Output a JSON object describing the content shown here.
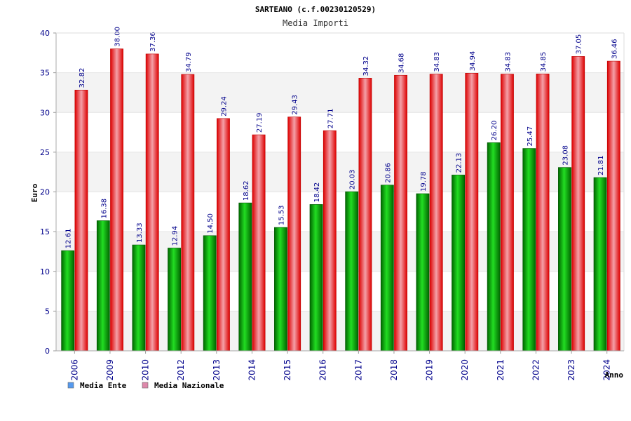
{
  "chart_data": {
    "type": "bar",
    "title": "SARTEANO (c.f.00230120529)",
    "subtitle": "Media Importi",
    "xlabel": "Anno",
    "ylabel": "Euro",
    "ylim": [
      0,
      40
    ],
    "yticks": [
      0,
      5,
      10,
      15,
      20,
      25,
      30,
      35,
      40
    ],
    "grid": true,
    "legend_position": "bottom-left",
    "categories": [
      "2006",
      "2009",
      "2010",
      "2012",
      "2013",
      "2014",
      "2015",
      "2016",
      "2017",
      "2018",
      "2019",
      "2020",
      "2021",
      "2022",
      "2023",
      "2024"
    ],
    "series": [
      {
        "name": "Media Ente",
        "color": "#00aa00",
        "legend_color": "#5599ee",
        "values": [
          12.61,
          16.38,
          13.33,
          12.94,
          14.5,
          18.62,
          15.53,
          18.42,
          20.03,
          20.86,
          19.78,
          22.13,
          26.2,
          25.47,
          23.08,
          21.81
        ],
        "labels": [
          "12.61",
          "16.38",
          "13.33",
          "12.94",
          "14.50",
          "18.62",
          "15.53",
          "18.42",
          "20.03",
          "20.86",
          "19.78",
          "22.13",
          "26.20",
          "25.47",
          "23.08",
          "21.81"
        ]
      },
      {
        "name": "Media Nazionale",
        "color": "#ee1122",
        "legend_color": "#dd88aa",
        "values": [
          32.82,
          38.0,
          37.36,
          34.79,
          29.24,
          27.19,
          29.43,
          27.71,
          34.32,
          34.68,
          34.83,
          34.94,
          34.83,
          34.85,
          37.05,
          36.46
        ],
        "labels": [
          "32.82",
          "38.00",
          "37.36",
          "34.79",
          "29.24",
          "27.19",
          "29.43",
          "27.71",
          "34.32",
          "34.68",
          "34.83",
          "34.94",
          "34.83",
          "34.85",
          "37.05",
          "36.46"
        ]
      }
    ]
  }
}
